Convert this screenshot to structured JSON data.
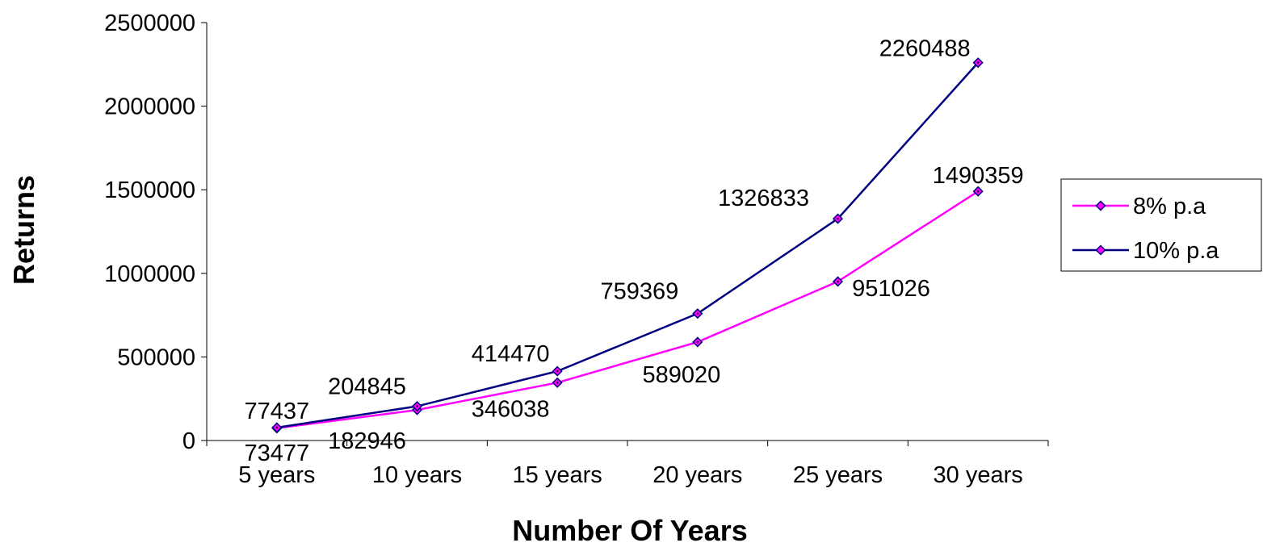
{
  "chart_data": {
    "type": "line",
    "title": "",
    "xlabel": "Number Of Years",
    "ylabel": "Returns",
    "categories": [
      "5 years",
      "10 years",
      "15 years",
      "20 years",
      "25 years",
      "30 years"
    ],
    "ylim": [
      0,
      2500000
    ],
    "yticks": [
      0,
      500000,
      1000000,
      1500000,
      2000000,
      2500000
    ],
    "ytick_labels": [
      "0",
      "500000",
      "1000000",
      "1500000",
      "2000000",
      "2500000"
    ],
    "grid": false,
    "legend_position": "right",
    "series": [
      {
        "name": "8% p.a",
        "color": "#ff00ff",
        "values": [
          73477,
          182946,
          346038,
          589020,
          951026,
          1490359
        ],
        "labels": [
          "73477",
          "182946",
          "346038",
          "589020",
          "951026",
          "1490359"
        ]
      },
      {
        "name": "10% p.a",
        "color": "#000080",
        "values": [
          77437,
          204845,
          414470,
          759369,
          1326833,
          2260488
        ],
        "labels": [
          "77437",
          "204845",
          "414470",
          "759369",
          "1326833",
          "2260488"
        ]
      }
    ]
  }
}
